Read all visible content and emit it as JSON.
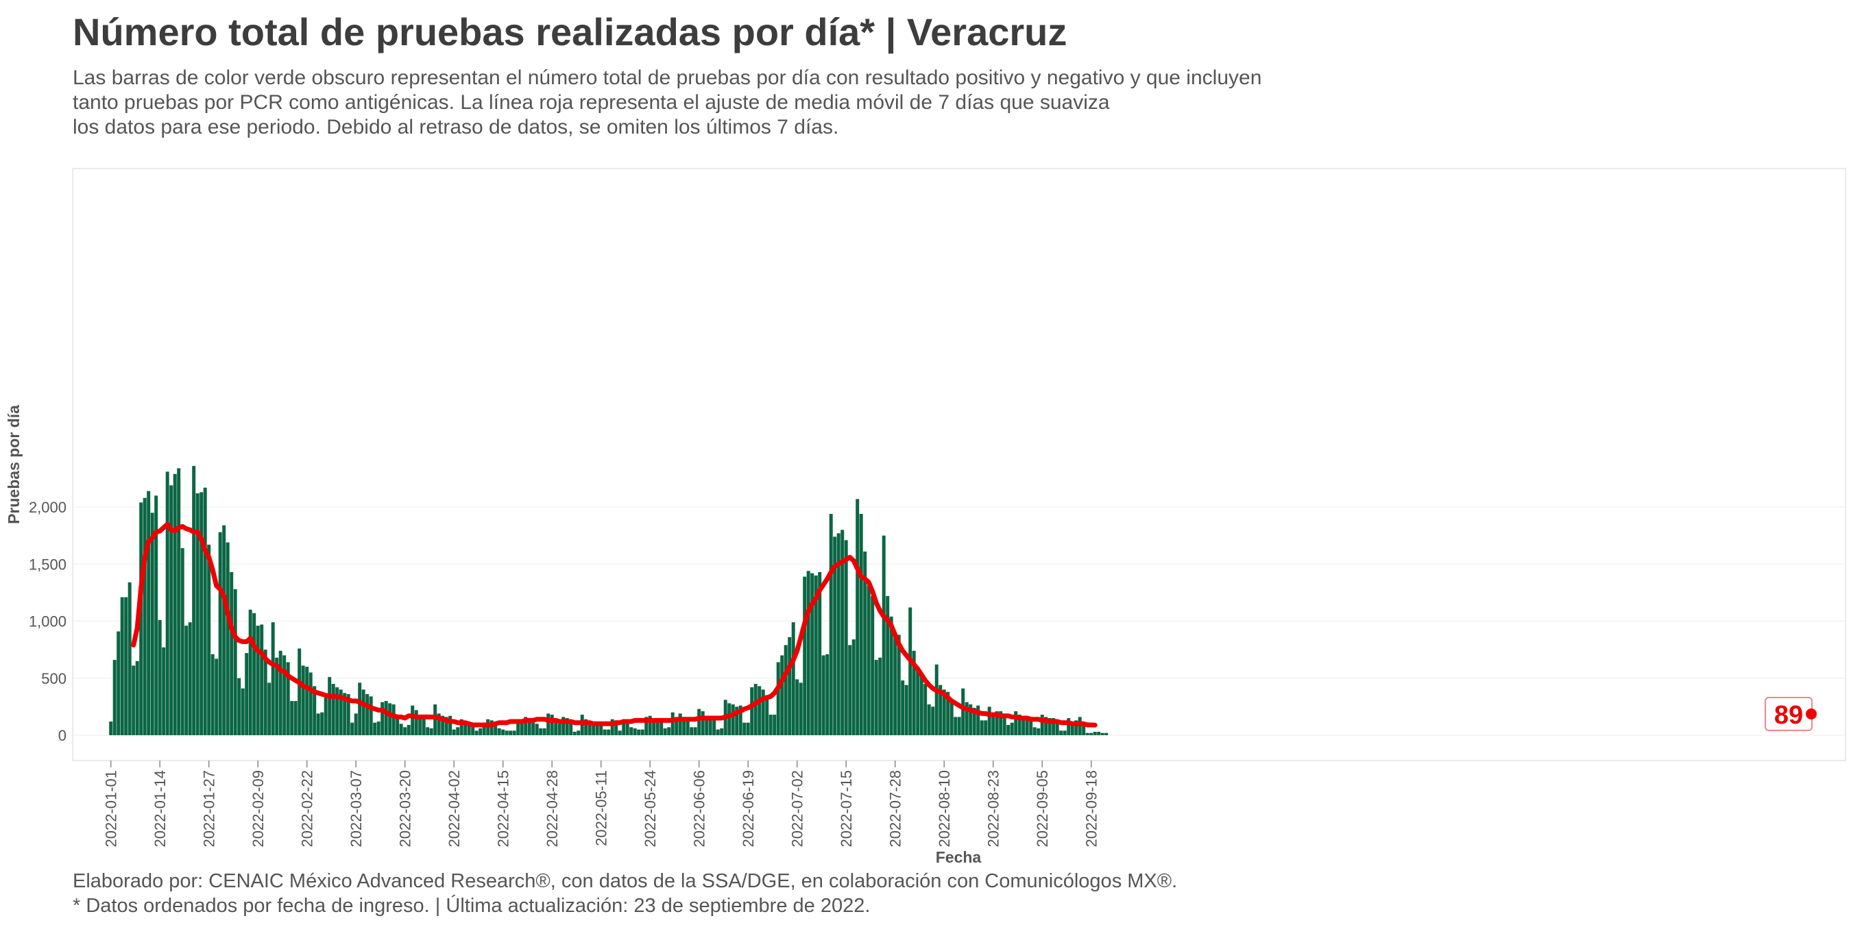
{
  "title": "Número total de pruebas realizadas por día* | Veracruz",
  "subtitle": [
    "Las barras de color verde obscuro representan el número total de pruebas por día con resultado positivo y negativo y que incluyen",
    "tanto pruebas por PCR como antigénicas. La línea roja representa el ajuste de media móvil de 7 días que suaviza",
    "los datos para ese periodo. Debido al retraso de datos, se omiten los últimos 7 días."
  ],
  "footer": [
    "Elaborado por: CENAIC México Advanced Research®, con datos de la SSA/DGE, en colaboración con Comunicólogos MX®.",
    "* Datos ordenados por fecha de ingreso. | Última actualización: 23 de septiembre de 2022."
  ],
  "colors": {
    "bar": "#0b6644",
    "line": "#ee0000",
    "text": "#3d3d3d"
  },
  "chart_data": {
    "type": "bar",
    "xlabel": "Fecha",
    "ylabel": "Pruebas por día",
    "x_start": "2022-01-01",
    "ylim": [
      0,
      2400
    ],
    "yticks": [
      0,
      500,
      1000,
      1500,
      2000
    ],
    "ytick_labels": [
      "0",
      "500",
      "1,000",
      "1,500",
      "2,000"
    ],
    "xtick_labels": [
      "2022-01-01",
      "2022-01-14",
      "2022-01-27",
      "2022-02-09",
      "2022-02-22",
      "2022-03-07",
      "2022-03-20",
      "2022-04-02",
      "2022-04-15",
      "2022-04-28",
      "2022-05-11",
      "2022-05-24",
      "2022-06-06",
      "2022-06-19",
      "2022-07-02",
      "2022-07-15",
      "2022-07-28",
      "2022-08-10",
      "2022-08-23",
      "2022-09-05",
      "2022-09-18"
    ],
    "end_label": "89",
    "series": [
      {
        "name": "Pruebas por día",
        "type": "bar",
        "values": [
          120,
          660,
          910,
          1210,
          1210,
          1340,
          610,
          650,
          2040,
          2080,
          2140,
          1950,
          2100,
          1010,
          770,
          2310,
          2190,
          2290,
          2340,
          1640,
          960,
          990,
          2360,
          2120,
          2130,
          2170,
          1670,
          710,
          670,
          1780,
          1840,
          1690,
          1430,
          1280,
          500,
          410,
          720,
          1100,
          1070,
          960,
          970,
          750,
          460,
          990,
          680,
          740,
          700,
          640,
          300,
          300,
          760,
          610,
          600,
          550,
          430,
          190,
          200,
          330,
          510,
          450,
          420,
          400,
          370,
          360,
          110,
          190,
          460,
          400,
          360,
          340,
          110,
          120,
          290,
          300,
          280,
          270,
          180,
          100,
          70,
          90,
          260,
          220,
          160,
          180,
          70,
          60,
          270,
          190,
          170,
          160,
          170,
          50,
          70,
          140,
          110,
          110,
          100,
          40,
          60,
          70,
          140,
          130,
          120,
          60,
          50,
          40,
          40,
          40,
          130,
          140,
          160,
          120,
          110,
          100,
          60,
          60,
          190,
          180,
          140,
          100,
          160,
          150,
          120,
          30,
          40,
          180,
          140,
          120,
          110,
          120,
          110,
          50,
          50,
          140,
          130,
          40,
          130,
          120,
          70,
          60,
          50,
          50,
          160,
          170,
          140,
          110,
          120,
          60,
          70,
          200,
          140,
          190,
          140,
          130,
          70,
          70,
          230,
          210,
          160,
          150,
          140,
          50,
          60,
          310,
          280,
          270,
          250,
          260,
          110,
          110,
          420,
          450,
          430,
          400,
          350,
          180,
          180,
          640,
          700,
          790,
          860,
          990,
          490,
          460,
          1390,
          1440,
          1420,
          1400,
          1430,
          700,
          710,
          1940,
          1740,
          1770,
          1800,
          1710,
          790,
          840,
          2070,
          1940,
          1610,
          1310,
          1220,
          660,
          680,
          1750,
          1220,
          1040,
          880,
          880,
          480,
          440,
          1120,
          740,
          600,
          530,
          450,
          270,
          250,
          620,
          440,
          400,
          380,
          300,
          160,
          160,
          410,
          290,
          270,
          240,
          260,
          130,
          130,
          250,
          200,
          210,
          210,
          170,
          90,
          110,
          210,
          180,
          170,
          160,
          150,
          70,
          60,
          180,
          160,
          150,
          150,
          130,
          40,
          40,
          150,
          120,
          130,
          160,
          110,
          20,
          20,
          30,
          30,
          20,
          20
        ]
      },
      {
        "name": "Media móvil de 7 días",
        "type": "line",
        "values": [
          null,
          null,
          null,
          null,
          null,
          null,
          790,
          940,
          1290,
          1560,
          1700,
          1730,
          1780,
          1790,
          1820,
          1850,
          1800,
          1790,
          1820,
          1830,
          1810,
          1800,
          1780,
          1780,
          1720,
          1620,
          1560,
          1450,
          1310,
          1280,
          1220,
          1070,
          940,
          860,
          830,
          820,
          820,
          850,
          780,
          740,
          720,
          670,
          640,
          620,
          610,
          570,
          560,
          520,
          500,
          480,
          460,
          430,
          420,
          400,
          380,
          370,
          360,
          350,
          340,
          340,
          340,
          330,
          320,
          310,
          300,
          300,
          290,
          270,
          260,
          240,
          230,
          220,
          220,
          200,
          180,
          170,
          160,
          160,
          150,
          170,
          170,
          160,
          160,
          160,
          160,
          160,
          160,
          150,
          140,
          130,
          120,
          120,
          110,
          110,
          110,
          100,
          90,
          90,
          90,
          90,
          90,
          90,
          100,
          110,
          110,
          110,
          120,
          120,
          120,
          120,
          130,
          130,
          130,
          140,
          140,
          140,
          130,
          130,
          130,
          120,
          120,
          120,
          120,
          110,
          110,
          110,
          110,
          110,
          100,
          100,
          100,
          100,
          100,
          100,
          110,
          110,
          120,
          120,
          120,
          130,
          130,
          130,
          130,
          130,
          130,
          130,
          130,
          130,
          130,
          130,
          140,
          140,
          140,
          140,
          140,
          140,
          150,
          150,
          150,
          150,
          150,
          150,
          150,
          160,
          170,
          180,
          200,
          210,
          230,
          240,
          260,
          280,
          300,
          320,
          330,
          340,
          370,
          420,
          480,
          540,
          600,
          660,
          740,
          860,
          980,
          1090,
          1150,
          1200,
          1270,
          1320,
          1370,
          1430,
          1480,
          1500,
          1520,
          1540,
          1560,
          1530,
          1460,
          1390,
          1370,
          1340,
          1260,
          1160,
          1090,
          1040,
          1010,
          960,
          880,
          800,
          740,
          700,
          660,
          620,
          580,
          530,
          480,
          440,
          410,
          390,
          380,
          360,
          330,
          300,
          280,
          260,
          240,
          230,
          220,
          210,
          200,
          190,
          190,
          180,
          180,
          180,
          170,
          170,
          170,
          160,
          160,
          150,
          150,
          150,
          140,
          140,
          140,
          130,
          130,
          120,
          120,
          120,
          110,
          110,
          110,
          100,
          100,
          100,
          100,
          90,
          90,
          89
        ]
      }
    ]
  }
}
